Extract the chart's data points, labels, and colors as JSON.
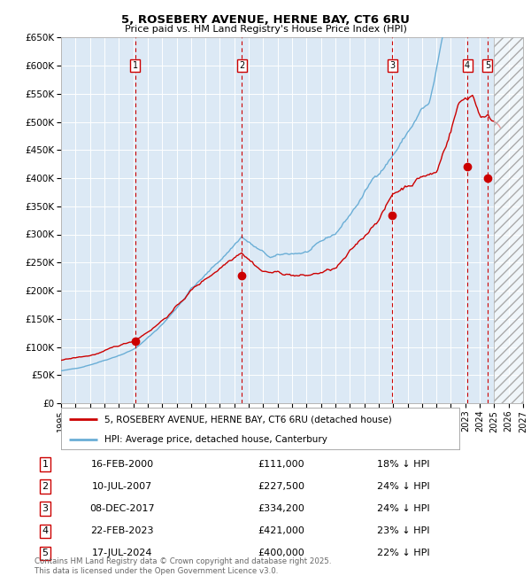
{
  "title": "5, ROSEBERY AVENUE, HERNE BAY, CT6 6RU",
  "subtitle": "Price paid vs. HM Land Registry's House Price Index (HPI)",
  "ylim": [
    0,
    650000
  ],
  "yticks": [
    0,
    50000,
    100000,
    150000,
    200000,
    250000,
    300000,
    350000,
    400000,
    450000,
    500000,
    550000,
    600000,
    650000
  ],
  "ytick_labels": [
    "£0",
    "£50K",
    "£100K",
    "£150K",
    "£200K",
    "£250K",
    "£300K",
    "£350K",
    "£400K",
    "£450K",
    "£500K",
    "£550K",
    "£600K",
    "£650K"
  ],
  "xlim_start": 1995.0,
  "xlim_end": 2027.0,
  "background_color": "#ffffff",
  "plot_bg_color": "#dce9f5",
  "grid_color": "#ffffff",
  "hpi_line_color": "#6aaed6",
  "price_line_color": "#cc0000",
  "sale_marker_color": "#cc0000",
  "dashed_line_color": "#cc0000",
  "sales": [
    {
      "label": "1",
      "date_num": 2000.12,
      "price": 111000
    },
    {
      "label": "2",
      "date_num": 2007.53,
      "price": 227500
    },
    {
      "label": "3",
      "date_num": 2017.93,
      "price": 334200
    },
    {
      "label": "4",
      "date_num": 2023.14,
      "price": 421000
    },
    {
      "label": "5",
      "date_num": 2024.54,
      "price": 400000
    }
  ],
  "legend_entries": [
    "5, ROSEBERY AVENUE, HERNE BAY, CT6 6RU (detached house)",
    "HPI: Average price, detached house, Canterbury"
  ],
  "table_entries": [
    {
      "num": "1",
      "date": "16-FEB-2000",
      "price": "£111,000",
      "hpi_pct": "18% ↓ HPI"
    },
    {
      "num": "2",
      "date": "10-JUL-2007",
      "price": "£227,500",
      "hpi_pct": "24% ↓ HPI"
    },
    {
      "num": "3",
      "date": "08-DEC-2017",
      "price": "£334,200",
      "hpi_pct": "24% ↓ HPI"
    },
    {
      "num": "4",
      "date": "22-FEB-2023",
      "price": "£421,000",
      "hpi_pct": "23% ↓ HPI"
    },
    {
      "num": "5",
      "date": "17-JUL-2024",
      "price": "£400,000",
      "hpi_pct": "22% ↓ HPI"
    }
  ],
  "footnote": "Contains HM Land Registry data © Crown copyright and database right 2025.\nThis data is licensed under the Open Government Licence v3.0.",
  "future_start": 2025.0
}
